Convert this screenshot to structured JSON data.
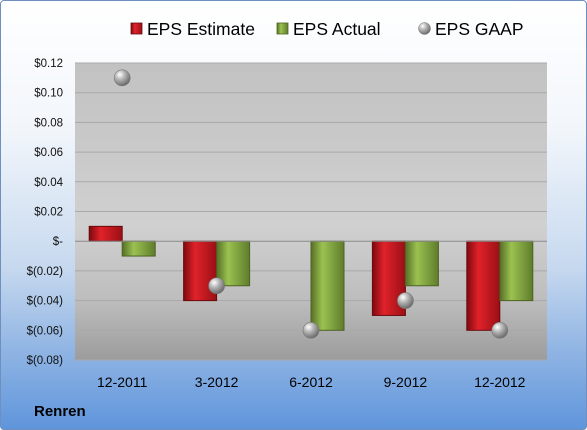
{
  "footer": {
    "company": "Renren"
  },
  "chart_data": {
    "type": "bar",
    "categories": [
      "12-2011",
      "3-2012",
      "6-2012",
      "9-2012",
      "12-2012"
    ],
    "series": [
      {
        "name": "EPS Estimate",
        "kind": "bar",
        "color": "#c0141c",
        "values": [
          0.01,
          -0.04,
          null,
          -0.05,
          -0.06
        ]
      },
      {
        "name": "EPS Actual",
        "kind": "bar",
        "color": "#7ea63e",
        "values": [
          -0.01,
          -0.03,
          -0.06,
          -0.03,
          -0.04
        ]
      },
      {
        "name": "EPS GAAP",
        "kind": "scatter",
        "color": "#9a9a9a",
        "values": [
          0.11,
          -0.03,
          -0.06,
          -0.04,
          -0.06
        ]
      }
    ],
    "ylim": [
      -0.08,
      0.12
    ],
    "yticks": [
      0.12,
      0.1,
      0.08,
      0.06,
      0.04,
      0.02,
      0,
      -0.02,
      -0.04,
      -0.06,
      -0.08
    ],
    "ytick_labels": [
      "$0.12",
      "$0.10",
      "$0.08",
      "$0.06",
      "$0.04",
      "$0.02",
      "$-",
      "$(0.02)",
      "$(0.04)",
      "$(0.06)",
      "$(0.08)"
    ],
    "legend_position": "top",
    "grid": true
  }
}
